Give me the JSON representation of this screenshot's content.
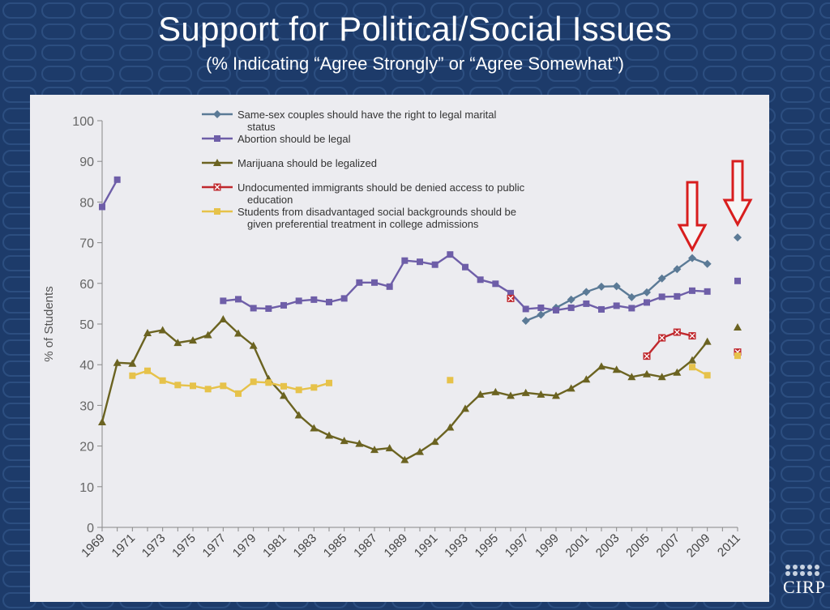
{
  "slide": {
    "title": "Support for Political/Social Issues",
    "subtitle": "(% Indicating “Agree Strongly” or “Agree Somewhat”)",
    "logo_text": "CIRP"
  },
  "colors": {
    "background": "#1d3b6a",
    "panel": "#ececf0",
    "same_sex": "#5b7a96",
    "abortion": "#6e5ea8",
    "marijuana": "#6b6321",
    "undocumented": "#c0282d",
    "disadvantaged": "#e6c24a",
    "arrows": "#d81e1e"
  },
  "chart_data": {
    "type": "line",
    "title": "",
    "xlabel": "",
    "ylabel": "% of Students",
    "ylim": [
      0,
      100
    ],
    "xlim": [
      1969,
      2011
    ],
    "yticks": [
      0,
      10,
      20,
      30,
      40,
      50,
      60,
      70,
      80,
      90,
      100
    ],
    "xticks": [
      "1969",
      "1971",
      "1973",
      "1975",
      "1977",
      "1979",
      "1981",
      "1983",
      "1985",
      "1987",
      "1989",
      "1991",
      "1993",
      "1995",
      "1997",
      "1999",
      "2001",
      "2003",
      "2005",
      "2007",
      "2009",
      "2011"
    ],
    "grid": false,
    "legend_position": "top",
    "annotations": [
      {
        "type": "down-arrow",
        "x": 2008
      },
      {
        "type": "down-arrow",
        "x": 2011
      }
    ],
    "series": [
      {
        "name": "Same-sex couples should have the right to legal marital status",
        "color_key": "same_sex",
        "marker": "diamond",
        "segments": [
          [
            [
              1997,
              50.8
            ],
            [
              1998,
              52.3
            ],
            [
              1999,
              54.0
            ],
            [
              2000,
              56.0
            ],
            [
              2001,
              57.9
            ],
            [
              2002,
              59.2
            ],
            [
              2003,
              59.3
            ],
            [
              2004,
              56.6
            ],
            [
              2005,
              57.8
            ],
            [
              2006,
              61.2
            ],
            [
              2007,
              63.5
            ],
            [
              2008,
              66.2
            ],
            [
              2009,
              64.8
            ]
          ],
          [
            [
              2011,
              71.3
            ]
          ]
        ]
      },
      {
        "name": "Abortion should be legal",
        "color_key": "abortion",
        "marker": "square",
        "segments": [
          [
            [
              1969,
              78.8
            ],
            [
              1970,
              85.5
            ]
          ],
          [
            [
              1977,
              55.7
            ],
            [
              1978,
              56.1
            ],
            [
              1979,
              53.9
            ],
            [
              1980,
              53.8
            ],
            [
              1981,
              54.6
            ],
            [
              1982,
              55.7
            ],
            [
              1983,
              56.0
            ],
            [
              1984,
              55.4
            ],
            [
              1985,
              56.3
            ],
            [
              1986,
              60.2
            ],
            [
              1987,
              60.2
            ],
            [
              1988,
              59.2
            ],
            [
              1989,
              65.6
            ],
            [
              1990,
              65.3
            ],
            [
              1991,
              64.6
            ],
            [
              1992,
              67.1
            ],
            [
              1993,
              64.0
            ],
            [
              1994,
              60.9
            ],
            [
              1995,
              59.9
            ],
            [
              1996,
              57.6
            ],
            [
              1997,
              53.7
            ],
            [
              1998,
              54.0
            ],
            [
              1999,
              53.4
            ],
            [
              2000,
              54.0
            ],
            [
              2001,
              55.0
            ],
            [
              2002,
              53.6
            ],
            [
              2003,
              54.5
            ],
            [
              2004,
              53.9
            ],
            [
              2005,
              55.3
            ],
            [
              2006,
              56.7
            ],
            [
              2007,
              56.8
            ],
            [
              2008,
              58.2
            ],
            [
              2009,
              58.0
            ]
          ],
          [
            [
              2011,
              60.6
            ]
          ]
        ]
      },
      {
        "name": "Marijuana should be legalized",
        "color_key": "marijuana",
        "marker": "triangle",
        "segments": [
          [
            [
              1969,
              25.9
            ],
            [
              1970,
              40.5
            ],
            [
              1971,
              40.3
            ],
            [
              1972,
              47.8
            ],
            [
              1973,
              48.5
            ],
            [
              1974,
              45.4
            ],
            [
              1975,
              46.0
            ],
            [
              1976,
              47.3
            ],
            [
              1977,
              51.2
            ],
            [
              1978,
              47.7
            ],
            [
              1979,
              44.7
            ],
            [
              1980,
              36.5
            ],
            [
              1981,
              32.4
            ],
            [
              1982,
              27.6
            ],
            [
              1983,
              24.4
            ],
            [
              1984,
              22.6
            ],
            [
              1985,
              21.3
            ],
            [
              1986,
              20.6
            ],
            [
              1987,
              19.1
            ],
            [
              1988,
              19.5
            ],
            [
              1989,
              16.6
            ],
            [
              1990,
              18.6
            ],
            [
              1991,
              21.1
            ],
            [
              1992,
              24.6
            ],
            [
              1993,
              29.2
            ],
            [
              1994,
              32.7
            ],
            [
              1995,
              33.3
            ],
            [
              1996,
              32.4
            ],
            [
              1997,
              33.1
            ],
            [
              1998,
              32.7
            ],
            [
              1999,
              32.4
            ],
            [
              2000,
              34.2
            ],
            [
              2001,
              36.4
            ],
            [
              2002,
              39.6
            ],
            [
              2003,
              38.8
            ],
            [
              2004,
              37.0
            ],
            [
              2005,
              37.7
            ],
            [
              2006,
              37.0
            ],
            [
              2007,
              38.1
            ],
            [
              2008,
              41.1
            ],
            [
              2009,
              45.7
            ]
          ],
          [
            [
              2011,
              49.2
            ]
          ]
        ]
      },
      {
        "name": "Undocumented immigrants should be denied access to public education",
        "color_key": "undocumented",
        "marker": "square-x",
        "segments": [
          [
            [
              1996,
              56.3
            ]
          ],
          [
            [
              2005,
              42.1
            ],
            [
              2006,
              46.6
            ],
            [
              2007,
              48.0
            ],
            [
              2008,
              47.1
            ]
          ],
          [
            [
              2011,
              43.1
            ]
          ]
        ]
      },
      {
        "name": "Students from disadvantaged social backgrounds should be given preferential treatment in college admissions",
        "color_key": "disadvantaged",
        "marker": "square",
        "segments": [
          [
            [
              1971,
              37.3
            ],
            [
              1972,
              38.5
            ],
            [
              1973,
              36.1
            ],
            [
              1974,
              35.0
            ],
            [
              1975,
              34.8
            ],
            [
              1976,
              34.0
            ],
            [
              1977,
              34.8
            ],
            [
              1978,
              32.9
            ],
            [
              1979,
              35.8
            ],
            [
              1980,
              35.6
            ],
            [
              1981,
              34.7
            ],
            [
              1982,
              33.8
            ],
            [
              1983,
              34.4
            ],
            [
              1984,
              35.5
            ]
          ],
          [
            [
              1992,
              36.2
            ]
          ],
          [
            [
              2008,
              39.4
            ],
            [
              2009,
              37.4
            ]
          ],
          [
            [
              2011,
              42.2
            ]
          ]
        ]
      }
    ]
  }
}
